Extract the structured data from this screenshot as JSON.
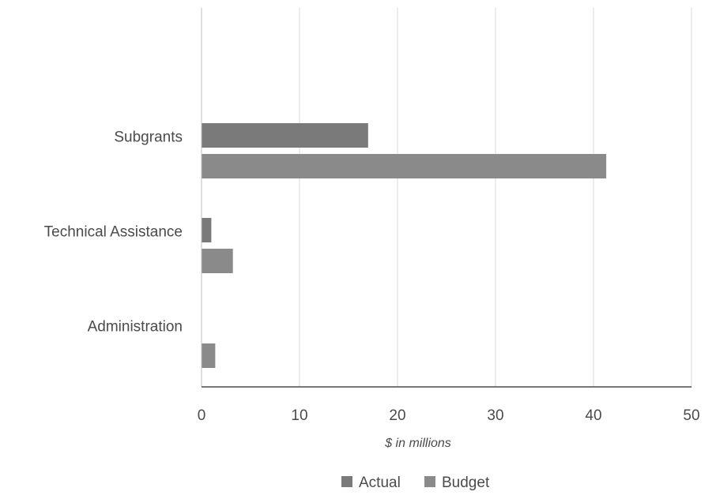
{
  "chart_data": {
    "type": "bar",
    "orientation": "horizontal",
    "categories": [
      "Subgrants",
      "Technical Assistance",
      "Administration"
    ],
    "series": [
      {
        "name": "Actual",
        "values": [
          17.0,
          1.0,
          0.0
        ]
      },
      {
        "name": "Budget",
        "values": [
          41.3,
          3.2,
          1.4
        ]
      }
    ],
    "title": "",
    "xlabel": "$ in millions",
    "ylabel": "",
    "xlim": [
      0,
      50
    ],
    "x_ticks": [
      0,
      10,
      20,
      30,
      40,
      50
    ],
    "grid": "vertical",
    "legend": "bottom",
    "colors": {
      "Actual": "#7a7a7a",
      "Budget": "#8a8a8a",
      "grid": "#d9d9d9",
      "axis": "#4a4a4a"
    }
  }
}
